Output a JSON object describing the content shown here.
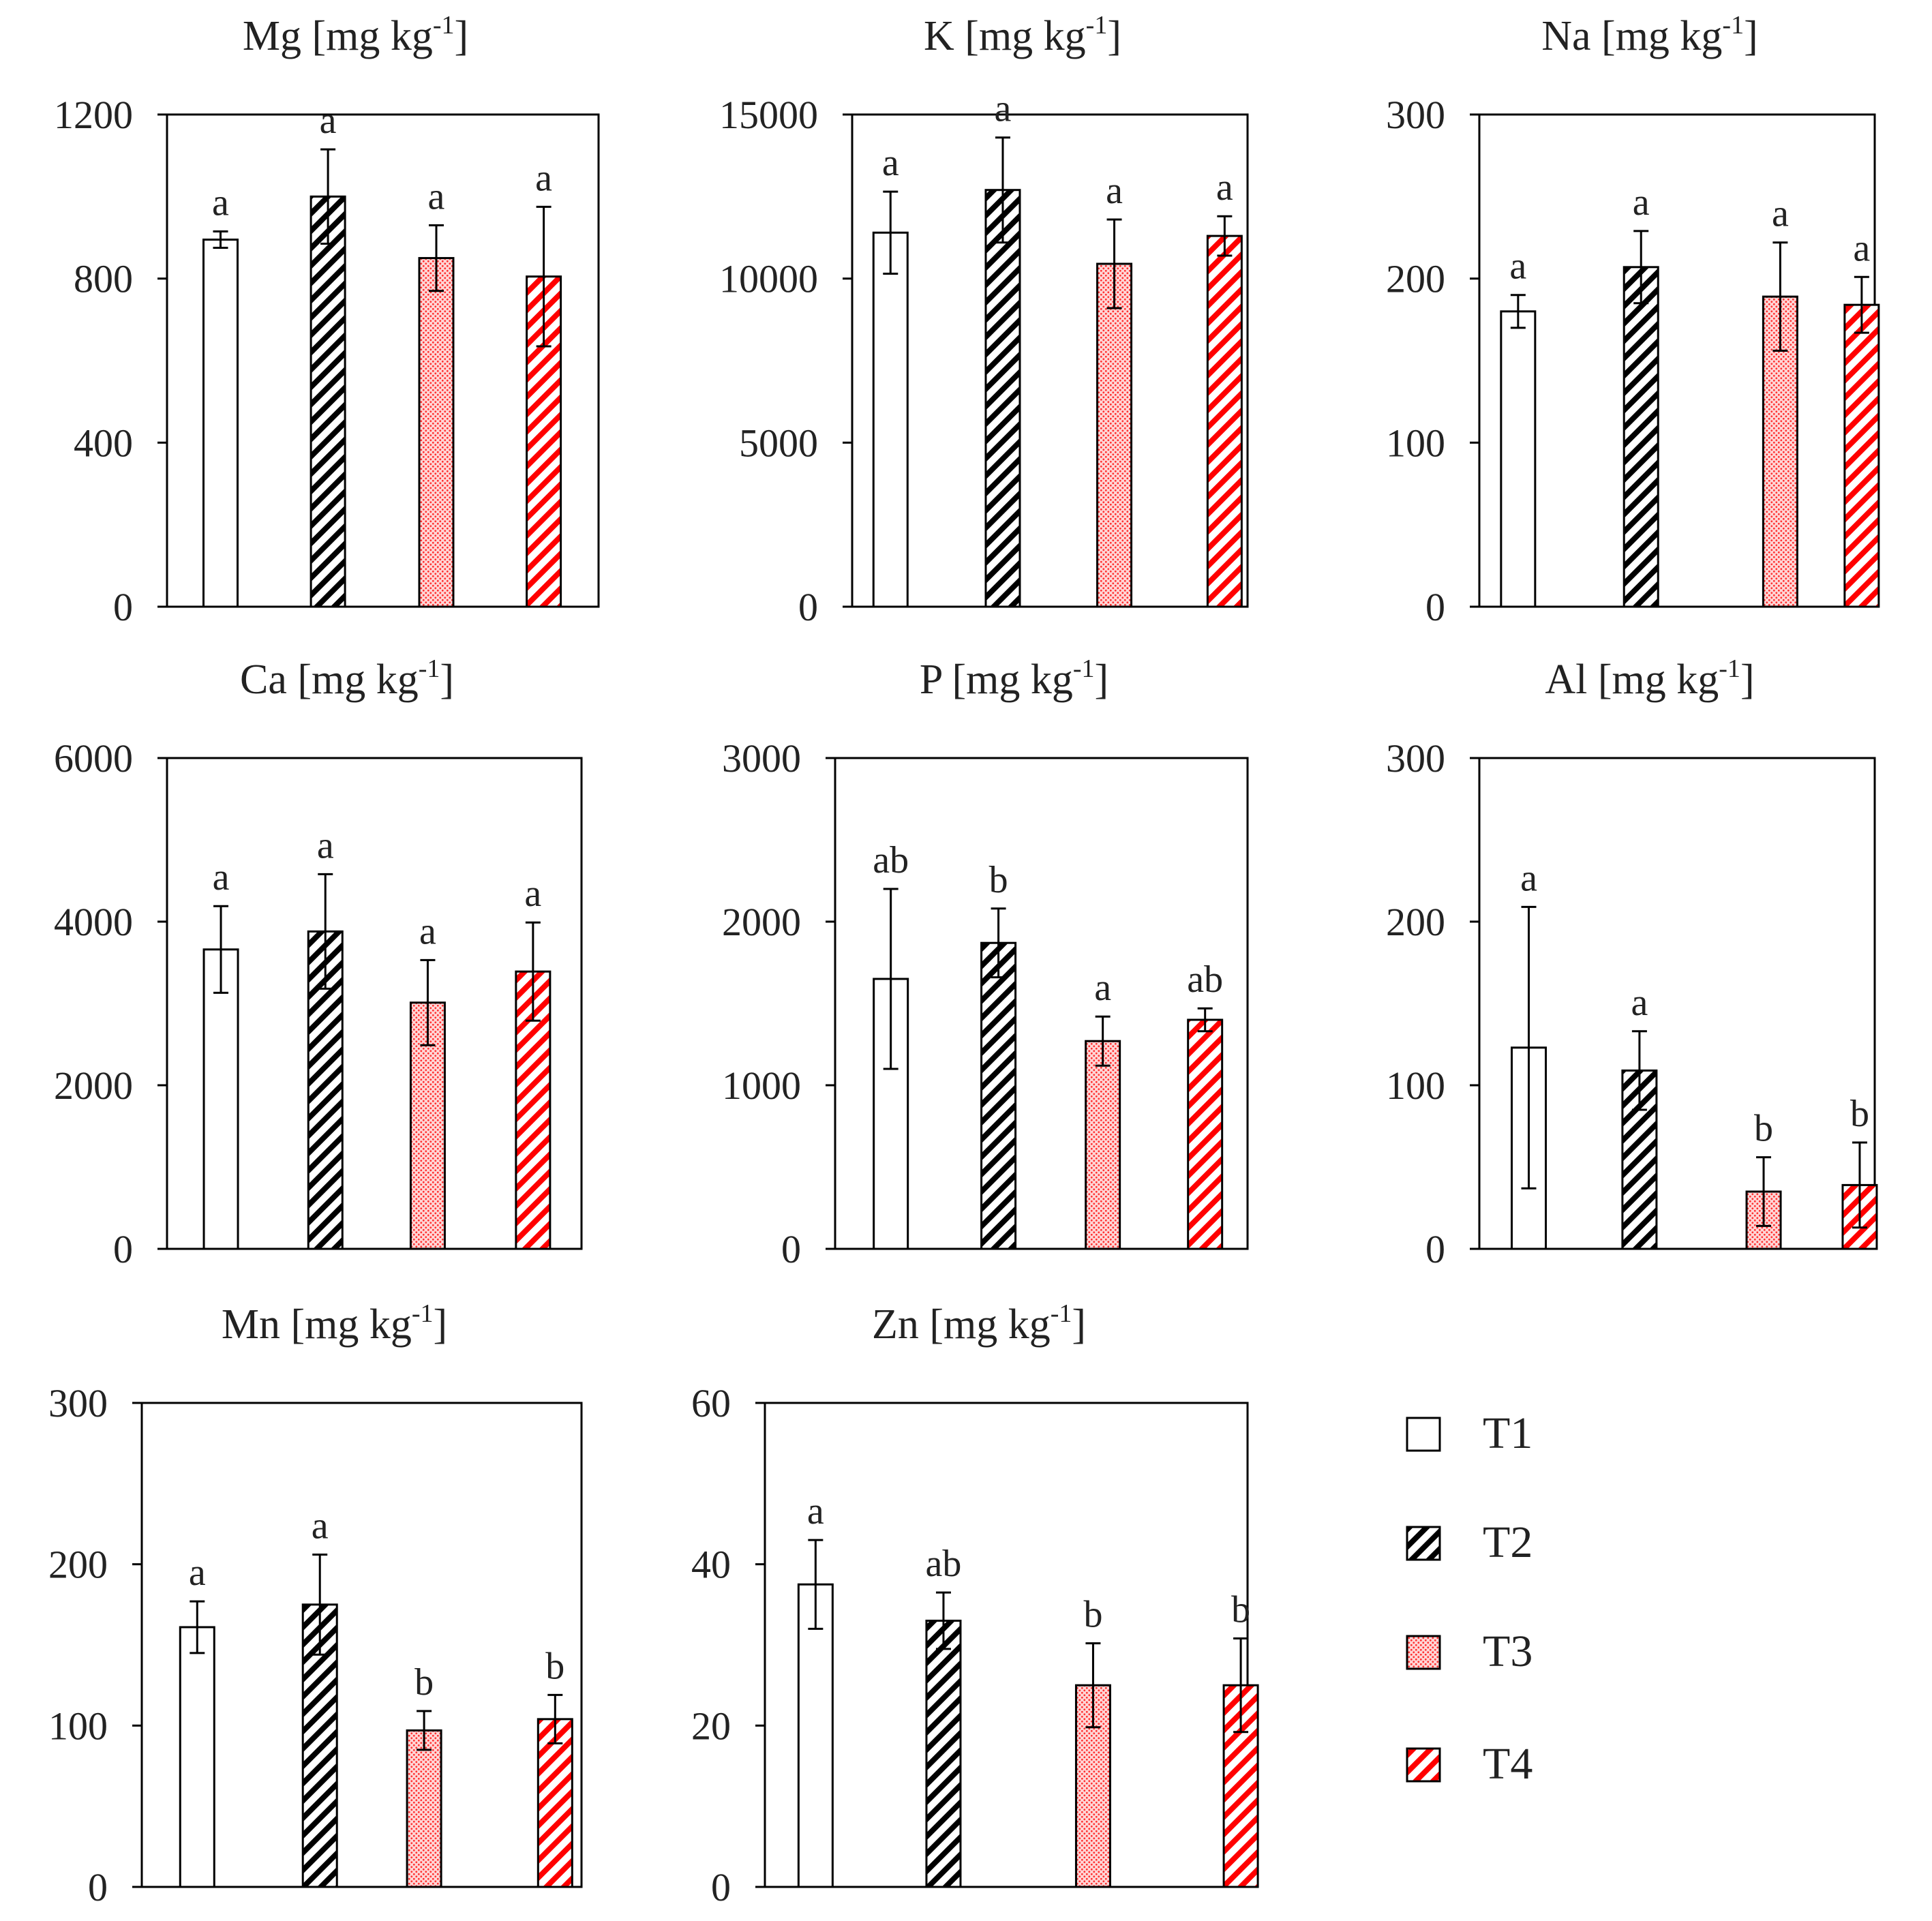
{
  "legend": {
    "items": [
      {
        "key": "T1",
        "label": "T1",
        "pattern": "empty"
      },
      {
        "key": "T2",
        "label": "T2",
        "pattern": "black-hatch"
      },
      {
        "key": "T3",
        "label": "T3",
        "pattern": "red-dots"
      },
      {
        "key": "T4",
        "label": "T4",
        "pattern": "red-hatch"
      }
    ]
  },
  "colors": {
    "axis": "#000000",
    "black_hatch": "#000000",
    "red": "#ff0000",
    "red_dot_fill": "#ffd0d0"
  },
  "chart_data": [
    {
      "type": "bar",
      "element": "Mg",
      "unit": "[mg kg",
      "unit_sup": "-1",
      "unit_end": "]",
      "ylim": [
        0,
        1200
      ],
      "yticks": [
        0,
        400,
        800,
        1200
      ],
      "categories": [
        "T1",
        "T2",
        "T3",
        "T4"
      ],
      "values": [
        895,
        1000,
        850,
        805
      ],
      "errors": [
        20,
        115,
        80,
        170
      ],
      "letters": [
        "a",
        "a",
        "a",
        "a"
      ]
    },
    {
      "type": "bar",
      "element": "K",
      "unit": "[mg kg",
      "unit_sup": "-1",
      "unit_end": "]",
      "ylim": [
        0,
        15000
      ],
      "yticks": [
        0,
        5000,
        10000,
        15000
      ],
      "categories": [
        "T1",
        "T2",
        "T3",
        "T4"
      ],
      "values": [
        11400,
        12700,
        10450,
        11300
      ],
      "errors": [
        1250,
        1600,
        1350,
        600
      ],
      "letters": [
        "a",
        "a",
        "a",
        "a"
      ]
    },
    {
      "type": "bar",
      "element": "Na",
      "unit": "[mg kg",
      "unit_sup": "-1",
      "unit_end": "]",
      "ylim": [
        0,
        300
      ],
      "yticks": [
        0,
        100,
        200,
        300
      ],
      "categories": [
        "T1",
        "T2",
        "T3",
        "T4"
      ],
      "values": [
        180,
        207,
        189,
        184
      ],
      "errors": [
        10,
        22,
        33,
        17
      ],
      "letters": [
        "a",
        "a",
        "a",
        "a"
      ]
    },
    {
      "type": "bar",
      "element": "Ca",
      "unit": "[mg kg",
      "unit_sup": "-1",
      "unit_end": "]",
      "ylim": [
        0,
        6000
      ],
      "yticks": [
        0,
        2000,
        4000,
        6000
      ],
      "categories": [
        "T1",
        "T2",
        "T3",
        "T4"
      ],
      "values": [
        3660,
        3880,
        3010,
        3390
      ],
      "errors": [
        530,
        700,
        520,
        600
      ],
      "letters": [
        "a",
        "a",
        "a",
        "a"
      ]
    },
    {
      "type": "bar",
      "element": "P",
      "unit": "[mg kg",
      "unit_sup": "-1",
      "unit_end": "]",
      "ylim": [
        0,
        3000
      ],
      "yticks": [
        0,
        1000,
        2000,
        3000
      ],
      "categories": [
        "T1",
        "T2",
        "T3",
        "T4"
      ],
      "values": [
        1650,
        1870,
        1270,
        1400
      ],
      "errors": [
        550,
        210,
        150,
        70
      ],
      "letters": [
        "ab",
        "b",
        "a",
        "ab"
      ]
    },
    {
      "type": "bar",
      "element": "Al",
      "unit": "[mg kg",
      "unit_sup": "-1",
      "unit_end": "]",
      "ylim": [
        0,
        300
      ],
      "yticks": [
        0,
        100,
        200,
        300
      ],
      "categories": [
        "T1",
        "T2",
        "T3",
        "T4"
      ],
      "values": [
        123,
        109,
        35,
        39
      ],
      "errors": [
        86,
        24,
        21,
        26
      ],
      "letters": [
        "a",
        "a",
        "b",
        "b"
      ]
    },
    {
      "type": "bar",
      "element": "Mn",
      "unit": "[mg kg",
      "unit_sup": "-1",
      "unit_end": "]",
      "ylim": [
        0,
        300
      ],
      "yticks": [
        0,
        100,
        200,
        300
      ],
      "categories": [
        "T1",
        "T2",
        "T3",
        "T4"
      ],
      "values": [
        161,
        175,
        97,
        104
      ],
      "errors": [
        16,
        31,
        12,
        15
      ],
      "letters": [
        "a",
        "a",
        "b",
        "b"
      ]
    },
    {
      "type": "bar",
      "element": "Zn",
      "unit": "[mg kg",
      "unit_sup": "-1",
      "unit_end": "]",
      "ylim": [
        0,
        60
      ],
      "yticks": [
        0,
        20,
        40,
        60
      ],
      "categories": [
        "T1",
        "T2",
        "T3",
        "T4"
      ],
      "values": [
        37.5,
        33,
        25,
        25
      ],
      "errors": [
        5.5,
        3.5,
        5.2,
        5.8
      ],
      "letters": [
        "a",
        "ab",
        "b",
        "b"
      ]
    }
  ]
}
